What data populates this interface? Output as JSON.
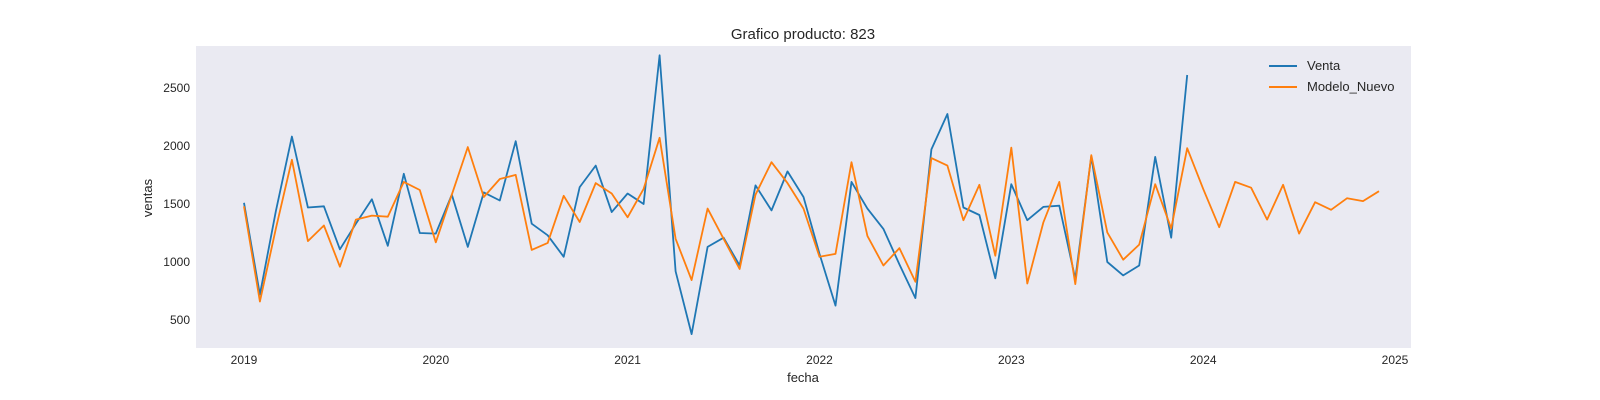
{
  "chart_data": {
    "type": "line",
    "title": "Grafico producto: 823",
    "xlabel": "fecha",
    "ylabel": "ventas",
    "x_ticks": [
      "2019",
      "2020",
      "2021",
      "2022",
      "2023",
      "2024",
      "2025"
    ],
    "y_ticks": [
      500,
      1000,
      1500,
      2000,
      2500
    ],
    "xlim": [
      "2018-10",
      "2025-02"
    ],
    "ylim": [
      260,
      2860
    ],
    "grid": false,
    "legend": "top-right",
    "series": [
      {
        "name": "Venta",
        "color": "#1f77b4",
        "start": "2019-01",
        "values": [
          1510,
          720,
          1440,
          2080,
          1470,
          1480,
          1110,
          1330,
          1540,
          1140,
          1760,
          1250,
          1245,
          1580,
          1130,
          1600,
          1530,
          2040,
          1330,
          1230,
          1045,
          1645,
          1830,
          1430,
          1590,
          1500,
          2780,
          920,
          380,
          1130,
          1210,
          970,
          1660,
          1445,
          1780,
          1560,
          1070,
          625,
          1690,
          1460,
          1285,
          980,
          690,
          1970,
          2275,
          1470,
          1405,
          860,
          1670,
          1360,
          1475,
          1485,
          855,
          1910,
          1000,
          885,
          970,
          1905,
          1210,
          2610
        ],
        "values_unit": "ventas"
      },
      {
        "name": "Modelo_Nuevo",
        "color": "#ff7f0e",
        "start": "2019-01",
        "values": [
          1480,
          660,
          1290,
          1880,
          1180,
          1315,
          960,
          1365,
          1400,
          1390,
          1690,
          1620,
          1170,
          1580,
          1990,
          1560,
          1715,
          1750,
          1105,
          1165,
          1570,
          1345,
          1680,
          1590,
          1385,
          1630,
          2070,
          1200,
          845,
          1460,
          1200,
          940,
          1580,
          1860,
          1680,
          1460,
          1045,
          1070,
          1860,
          1225,
          970,
          1120,
          830,
          1895,
          1830,
          1360,
          1665,
          1055,
          1985,
          815,
          1340,
          1690,
          810,
          1920,
          1255,
          1020,
          1150,
          1670,
          1290,
          1980,
          1630,
          1300,
          1690,
          1640,
          1365,
          1665,
          1245,
          1515,
          1450,
          1550,
          1525,
          1610
        ]
      }
    ]
  }
}
